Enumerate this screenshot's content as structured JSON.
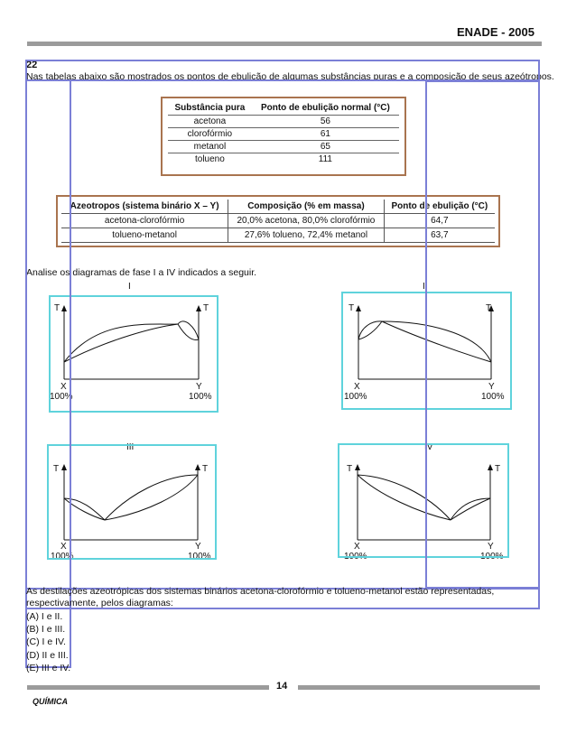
{
  "header": {
    "title": "ENADE - 2005"
  },
  "question": {
    "number": "22",
    "intro": "Nas tabelas abaixo são mostrados os pontos de ebulição de algumas substâncias puras e a composição de seus azeótropos.",
    "table1": {
      "headers": [
        "Substância pura",
        "Ponto de ebulição normal (°C)"
      ],
      "rows": [
        [
          "acetona",
          "56"
        ],
        [
          "clorofórmio",
          "61"
        ],
        [
          "metanol",
          "65"
        ],
        [
          "tolueno",
          "111"
        ]
      ]
    },
    "table2": {
      "headers": [
        "Azeotropos (sistema binário X – Y)",
        "Composição (% em massa)",
        "Ponto de ebulição (°C)"
      ],
      "rows": [
        [
          "acetona-clorofórmio",
          "20,0% acetona, 80,0% clorofórmio",
          "64,7"
        ],
        [
          "tolueno-metanol",
          "27,6% tolueno, 72,4% metanol",
          "63,7"
        ]
      ]
    },
    "analise": "Analise os diagramas de fase I a IV indicados a seguir.",
    "diagrams": [
      {
        "label": "I"
      },
      {
        "label": "II"
      },
      {
        "label": "III"
      },
      {
        "label": "IV"
      }
    ],
    "axis": {
      "t_label": "T",
      "x_label": "X",
      "y_label": "Y",
      "pct": "100%"
    },
    "closing": "As destilações azeotrópicas dos sistemas binários acetona-clorofórmio e tolueno-metanol estão representadas, respectivamente, pelos diagramas:",
    "options": [
      "(A)  I e II.",
      "(B)  I e III.",
      "(C)  I e IV.",
      "(D)  II e III.",
      "(E)  III e IV."
    ]
  },
  "footer": {
    "page": "14",
    "subject": "QUÍMICA"
  }
}
